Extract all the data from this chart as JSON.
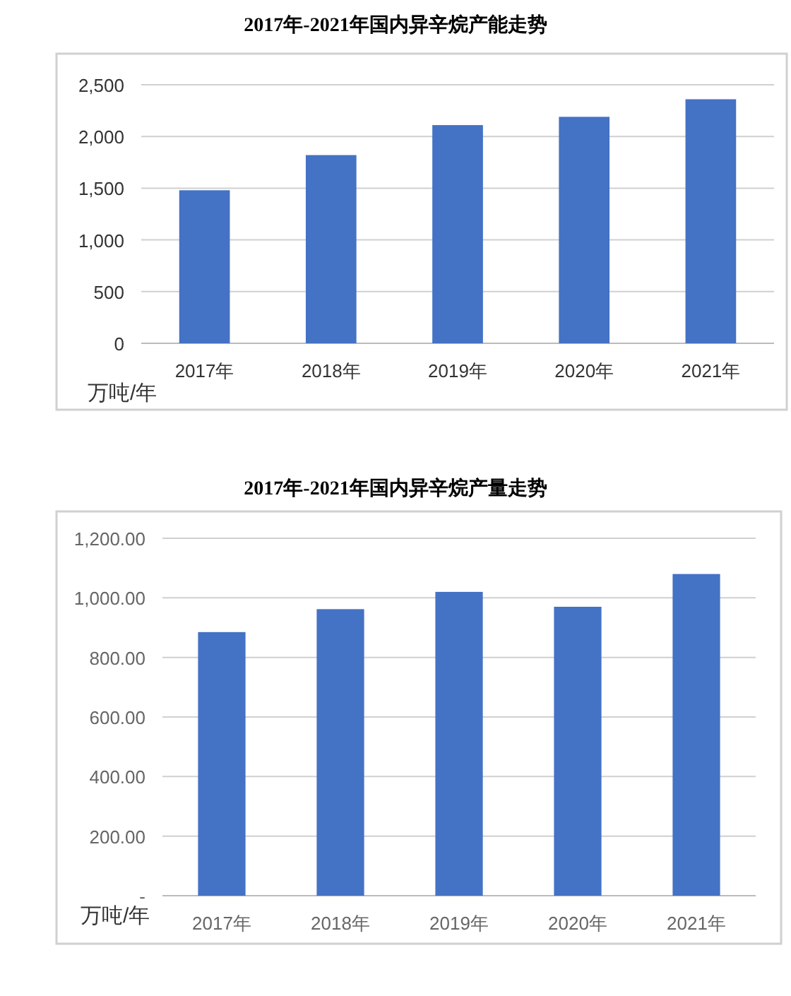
{
  "chart_data": [
    {
      "type": "bar",
      "title": "2017年-2021年国内异辛烷产能走势",
      "ylabel": "万吨/年",
      "categories": [
        "2017年",
        "2018年",
        "2019年",
        "2020年",
        "2021年"
      ],
      "values": [
        1480,
        1820,
        2110,
        2190,
        2360
      ],
      "color": "#4472c4",
      "ylim": [
        0,
        2500
      ],
      "yticks": [
        {
          "value": 0,
          "label": "0"
        },
        {
          "value": 500,
          "label": "500"
        },
        {
          "value": 1000,
          "label": "1,000"
        },
        {
          "value": 1500,
          "label": "1,500"
        },
        {
          "value": 2000,
          "label": "2,000"
        },
        {
          "value": 2500,
          "label": "2,500"
        }
      ],
      "grid": "y"
    },
    {
      "type": "bar",
      "title": "2017年-2021年国内异辛烷产量走势",
      "ylabel": "万吨/年",
      "categories": [
        "2017年",
        "2018年",
        "2019年",
        "2020年",
        "2021年"
      ],
      "values": [
        885,
        962,
        1020,
        970,
        1080
      ],
      "color": "#4472c4",
      "ylim": [
        0,
        1200
      ],
      "yticks": [
        {
          "value": 0,
          "label": "-"
        },
        {
          "value": 200,
          "label": "200.00"
        },
        {
          "value": 400,
          "label": "400.00"
        },
        {
          "value": 600,
          "label": "600.00"
        },
        {
          "value": 800,
          "label": "800.00"
        },
        {
          "value": 1000,
          "label": "1,000.00"
        },
        {
          "value": 1200,
          "label": "1,200.00"
        }
      ],
      "grid": "y"
    }
  ]
}
